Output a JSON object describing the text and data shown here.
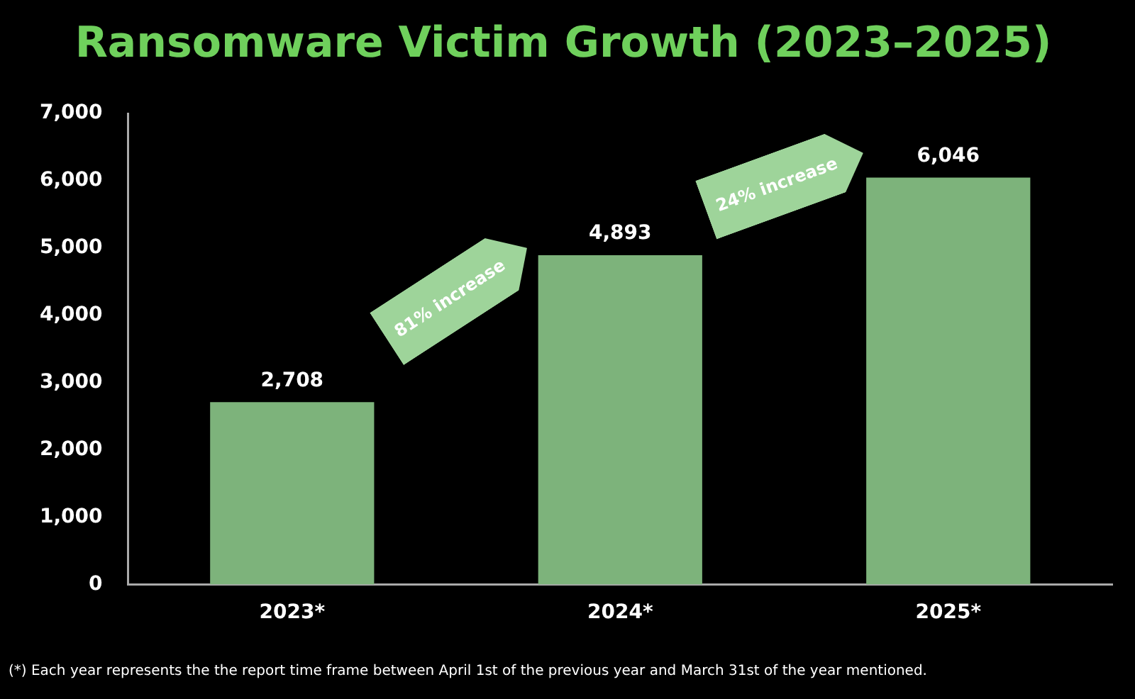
{
  "chart_data": {
    "type": "bar",
    "title": "Ransomware Victim Growth (2023–2025)",
    "categories": [
      "2023*",
      "2024*",
      "2025*"
    ],
    "values": [
      2708,
      4893,
      6046
    ],
    "color": "#7db37b",
    "ylim": [
      0,
      7000
    ],
    "yticks": [
      {
        "value": 0,
        "label": "0"
      },
      {
        "value": 1000,
        "label": "1,000"
      },
      {
        "value": 2000,
        "label": "2,000"
      },
      {
        "value": 3000,
        "label": "3,000"
      },
      {
        "value": 4000,
        "label": "4,000"
      },
      {
        "value": 5000,
        "label": "5,000"
      },
      {
        "value": 6000,
        "label": "6,000"
      },
      {
        "value": 7000,
        "label": "7,000"
      }
    ],
    "value_labels": [
      "2,708",
      "4,893",
      "6,046"
    ],
    "grid": false,
    "legend": false,
    "annotations": [
      "81% increase",
      "24% increase",
      "(*) Each year represents the the report time frame between April 1st of the previous year and March 31st of the year mentioned."
    ]
  }
}
